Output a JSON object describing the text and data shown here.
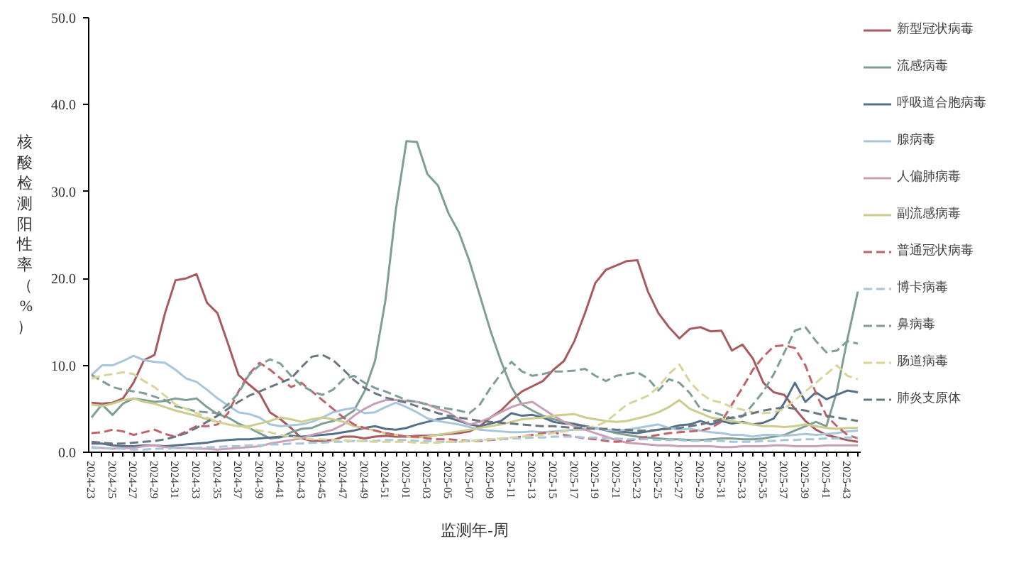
{
  "chart_data": {
    "type": "line",
    "ylabel": "核酸检测阳性率（%）",
    "xlabel": "监测年-周",
    "categories": [
      "2024-23",
      null,
      "2024-25",
      null,
      "2024-27",
      null,
      "2024-29",
      null,
      "2024-31",
      null,
      "2024-33",
      null,
      "2024-35",
      null,
      "2024-37",
      null,
      "2024-39",
      null,
      "2024-41",
      null,
      "2024-43",
      null,
      "2024-45",
      null,
      "2024-47",
      null,
      "2024-49",
      null,
      "2024-51",
      null,
      "2025-01",
      null,
      "2025-03",
      null,
      "2025-05",
      null,
      "2025-07",
      null,
      "2025-09",
      null,
      "2025-11",
      null,
      "2025-13",
      null,
      "2025-15",
      null,
      "2025-17",
      null,
      "2025-19",
      null,
      "2025-21",
      null,
      "2025-23",
      null,
      "2025-25",
      null,
      "2025-27",
      null,
      "2025-29",
      null,
      "2025-31",
      null,
      "2025-33",
      null,
      "2025-35",
      null,
      "2025-37",
      null,
      "2025-39",
      null,
      "2025-41",
      null,
      "2025-43",
      null
    ],
    "ylim": [
      0,
      50
    ],
    "yticks": [
      {
        "value": 0,
        "label": "0.0"
      },
      {
        "value": 10,
        "label": "10.0"
      },
      {
        "value": 20,
        "label": "20.0"
      },
      {
        "value": 30,
        "label": "30.0"
      },
      {
        "value": 40,
        "label": "40.0"
      },
      {
        "value": 50,
        "label": "50.0"
      }
    ],
    "grid": false,
    "legend": "right",
    "series": [
      {
        "name": "新型冠状病毒",
        "color": "#a85a5e",
        "line_style": "solid",
        "values": [
          5.7,
          5.6,
          5.7,
          6.2,
          8.0,
          10.6,
          11.2,
          16.0,
          19.8,
          20.0,
          20.5,
          17.2,
          16.0,
          12.5,
          8.9,
          7.8,
          6.8,
          4.6,
          3.8,
          2.8,
          1.6,
          1.3,
          1.3,
          1.4,
          1.8,
          1.8,
          1.6,
          1.8,
          1.9,
          1.8,
          1.8,
          1.9,
          1.9,
          2.0,
          2.1,
          2.2,
          2.4,
          3.0,
          4.0,
          4.8,
          6.0,
          7.0,
          7.6,
          8.2,
          9.5,
          10.5,
          12.8,
          16.0,
          19.5,
          21.0,
          21.5,
          22.0,
          22.1,
          18.5,
          16.0,
          14.4,
          13.1,
          14.2,
          14.4,
          13.9,
          14.0,
          11.7,
          12.4,
          10.8,
          8.0,
          6.9,
          6.6,
          5.0,
          3.6,
          2.6,
          2.0,
          1.7,
          1.4,
          1.2
        ]
      },
      {
        "name": "流感病毒",
        "color": "#7f9e94",
        "line_style": "solid",
        "values": [
          4.0,
          5.5,
          4.3,
          5.6,
          6.2,
          6.0,
          5.8,
          5.9,
          6.2,
          6.0,
          6.2,
          5.2,
          4.4,
          4.0,
          3.3,
          2.8,
          2.2,
          1.6,
          1.7,
          2.3,
          2.7,
          2.8,
          3.3,
          3.6,
          4.0,
          4.8,
          7.0,
          10.5,
          17.5,
          28.0,
          35.8,
          35.7,
          32.0,
          30.7,
          27.5,
          25.3,
          22.0,
          18.0,
          14.0,
          10.5,
          7.5,
          5.5,
          4.8,
          4.2,
          3.8,
          3.5,
          3.3,
          3.0,
          2.8,
          2.5,
          2.2,
          2.0,
          1.8,
          1.7,
          1.6,
          1.5,
          1.5,
          1.4,
          1.4,
          1.5,
          1.6,
          1.6,
          1.5,
          1.5,
          1.6,
          1.8,
          2.0,
          2.5,
          3.0,
          3.5,
          3.0,
          7.0,
          13.0,
          18.5
        ]
      },
      {
        "name": "呼吸道合胞病毒",
        "color": "#56708a",
        "line_style": "solid",
        "values": [
          1.0,
          1.0,
          0.8,
          0.7,
          0.7,
          0.8,
          0.8,
          0.7,
          0.8,
          0.9,
          1.0,
          1.1,
          1.3,
          1.4,
          1.5,
          1.5,
          1.6,
          1.7,
          1.8,
          1.9,
          1.8,
          1.9,
          2.0,
          2.1,
          2.3,
          2.5,
          2.8,
          3.0,
          2.7,
          2.6,
          2.8,
          3.2,
          3.5,
          3.8,
          4.0,
          3.6,
          3.2,
          3.0,
          3.3,
          3.6,
          4.5,
          4.2,
          4.3,
          4.0,
          3.5,
          3.3,
          3.2,
          3.0,
          2.8,
          2.6,
          2.4,
          2.3,
          2.2,
          2.4,
          2.6,
          2.8,
          3.1,
          3.2,
          3.6,
          3.2,
          3.6,
          3.3,
          3.5,
          3.2,
          3.4,
          3.9,
          5.7,
          8.0,
          5.8,
          6.9,
          6.1,
          6.6,
          7.1,
          6.9
        ]
      },
      {
        "name": "腺病毒",
        "color": "#a8c6da",
        "line_style": "solid",
        "values": [
          8.9,
          10.0,
          10.0,
          10.5,
          11.1,
          10.6,
          10.4,
          10.3,
          9.5,
          8.5,
          8.1,
          7.2,
          6.2,
          5.4,
          4.6,
          4.4,
          4.0,
          3.2,
          3.0,
          3.1,
          3.2,
          3.5,
          4.0,
          4.6,
          4.9,
          5.1,
          4.5,
          4.6,
          5.2,
          5.7,
          5.2,
          4.6,
          3.9,
          3.6,
          3.4,
          3.2,
          2.9,
          2.6,
          2.5,
          2.4,
          2.3,
          2.3,
          2.4,
          2.3,
          2.4,
          2.5,
          2.6,
          2.6,
          2.8,
          2.6,
          2.5,
          2.6,
          2.8,
          3.0,
          3.2,
          2.8,
          2.6,
          2.7,
          2.5,
          2.3,
          2.2,
          2.0,
          2.0,
          1.8,
          2.0,
          2.0,
          1.9,
          2.0,
          2.1,
          2.0,
          2.1,
          2.2,
          2.4,
          2.5
        ]
      },
      {
        "name": "人偏肺病毒",
        "color": "#c9a0b6",
        "line_style": "solid",
        "values": [
          0.6,
          0.5,
          0.4,
          0.5,
          0.5,
          0.7,
          0.8,
          0.6,
          0.5,
          0.5,
          0.4,
          0.4,
          0.3,
          0.4,
          0.5,
          0.6,
          0.7,
          1.0,
          1.2,
          1.4,
          1.6,
          2.0,
          2.3,
          2.6,
          3.2,
          4.2,
          5.0,
          5.6,
          6.0,
          6.0,
          5.9,
          5.8,
          5.5,
          5.0,
          4.6,
          3.8,
          3.2,
          3.5,
          4.0,
          4.6,
          5.2,
          5.6,
          5.8,
          5.0,
          4.2,
          3.5,
          3.0,
          2.6,
          2.2,
          1.8,
          1.4,
          1.1,
          1.0,
          0.9,
          0.8,
          0.8,
          0.7,
          0.7,
          0.7,
          0.7,
          0.6,
          0.6,
          0.7,
          0.7,
          0.7,
          0.8,
          0.8,
          0.7,
          0.7,
          0.7,
          0.8,
          0.8,
          0.8,
          0.8
        ]
      },
      {
        "name": "副流感病毒",
        "color": "#cccc8e",
        "line_style": "solid",
        "values": [
          5.5,
          5.3,
          5.6,
          6.0,
          6.2,
          5.8,
          5.6,
          5.2,
          4.8,
          4.5,
          4.2,
          3.8,
          3.5,
          3.2,
          3.0,
          3.0,
          3.3,
          3.6,
          4.0,
          3.8,
          3.5,
          3.8,
          4.0,
          3.8,
          3.5,
          3.0,
          2.8,
          2.5,
          2.2,
          2.0,
          1.8,
          1.7,
          1.8,
          2.0,
          2.2,
          2.4,
          2.6,
          2.8,
          3.0,
          3.2,
          3.5,
          3.8,
          3.9,
          4.0,
          4.2,
          4.3,
          4.4,
          4.0,
          3.8,
          3.6,
          3.5,
          3.6,
          3.9,
          4.2,
          4.6,
          5.2,
          6.0,
          5.0,
          4.5,
          4.0,
          3.8,
          3.6,
          3.4,
          3.2,
          3.0,
          3.0,
          2.9,
          3.0,
          3.2,
          3.0,
          2.8,
          2.7,
          2.8,
          2.8
        ]
      },
      {
        "name": "普通冠状病毒",
        "color": "#c0646c",
        "line_style": "dashed",
        "values": [
          2.2,
          2.3,
          2.6,
          2.4,
          2.0,
          2.3,
          2.6,
          2.1,
          1.8,
          2.4,
          3.0,
          3.0,
          3.2,
          4.5,
          7.0,
          9.0,
          10.3,
          9.5,
          8.5,
          7.5,
          8.0,
          7.0,
          6.0,
          5.0,
          4.0,
          3.2,
          2.8,
          2.5,
          2.2,
          2.0,
          1.8,
          1.8,
          1.6,
          1.5,
          1.5,
          1.4,
          1.3,
          1.3,
          1.4,
          1.5,
          1.6,
          1.8,
          2.0,
          2.2,
          2.3,
          2.0,
          1.8,
          1.6,
          1.5,
          1.3,
          1.2,
          1.3,
          1.5,
          1.8,
          2.0,
          2.2,
          2.3,
          2.4,
          2.5,
          2.8,
          3.5,
          5.5,
          7.4,
          9.5,
          11.0,
          12.2,
          12.3,
          12.0,
          10.0,
          6.8,
          4.2,
          3.0,
          2.0,
          1.6
        ]
      },
      {
        "name": "博卡病毒",
        "color": "#a8c6da",
        "line_style": "dashed",
        "values": [
          0.5,
          0.5,
          0.4,
          0.4,
          0.3,
          0.3,
          0.4,
          0.4,
          0.5,
          0.5,
          0.5,
          0.6,
          0.6,
          0.7,
          0.7,
          0.8,
          0.8,
          0.9,
          0.9,
          1.0,
          1.0,
          1.1,
          1.1,
          1.2,
          1.2,
          1.3,
          1.3,
          1.3,
          1.4,
          1.4,
          1.4,
          1.3,
          1.3,
          1.2,
          1.2,
          1.2,
          1.3,
          1.4,
          1.5,
          1.5,
          1.6,
          1.6,
          1.7,
          1.7,
          1.8,
          1.8,
          1.8,
          1.7,
          1.7,
          1.6,
          1.6,
          1.5,
          1.5,
          1.5,
          1.4,
          1.4,
          1.4,
          1.3,
          1.3,
          1.3,
          1.3,
          1.2,
          1.2,
          1.2,
          1.3,
          1.3,
          1.4,
          1.4,
          1.5,
          1.5,
          1.6,
          1.6,
          1.7,
          1.7
        ]
      },
      {
        "name": "鼻病毒",
        "color": "#7f9e94",
        "line_style": "dashed",
        "values": [
          8.9,
          8.2,
          7.5,
          7.2,
          7.0,
          6.8,
          6.4,
          6.0,
          5.3,
          5.0,
          4.7,
          4.6,
          4.5,
          5.5,
          6.8,
          8.9,
          10.0,
          10.7,
          10.2,
          8.8,
          7.7,
          7.0,
          6.6,
          7.2,
          8.4,
          8.8,
          8.0,
          7.4,
          7.0,
          6.5,
          6.0,
          5.8,
          5.5,
          5.2,
          5.0,
          4.8,
          4.5,
          5.5,
          7.4,
          9.0,
          10.4,
          9.3,
          8.8,
          9.0,
          9.3,
          9.3,
          9.4,
          9.6,
          8.8,
          8.2,
          8.8,
          9.0,
          9.2,
          8.5,
          7.1,
          8.4,
          8.0,
          6.8,
          5.0,
          4.7,
          4.3,
          3.9,
          4.1,
          5.5,
          7.0,
          9.0,
          11.5,
          14.0,
          14.4,
          12.8,
          11.5,
          11.7,
          12.8,
          12.5
        ]
      },
      {
        "name": "肠道病毒",
        "color": "#d8d49a",
        "line_style": "dashed",
        "values": [
          8.5,
          8.8,
          9.0,
          9.2,
          9.0,
          8.2,
          7.5,
          6.5,
          5.5,
          5.0,
          4.5,
          4.0,
          3.5,
          3.2,
          3.0,
          2.8,
          2.5,
          2.3,
          2.0,
          1.8,
          1.6,
          1.5,
          1.5,
          1.4,
          1.4,
          1.3,
          1.3,
          1.2,
          1.2,
          1.2,
          1.2,
          1.1,
          1.1,
          1.1,
          1.2,
          1.2,
          1.3,
          1.4,
          1.5,
          1.6,
          1.7,
          1.8,
          1.9,
          2.0,
          2.2,
          2.4,
          2.6,
          2.8,
          3.0,
          3.5,
          4.5,
          5.5,
          6.0,
          6.5,
          7.5,
          9.0,
          10.1,
          8.1,
          6.8,
          6.0,
          5.7,
          5.2,
          4.9,
          4.6,
          4.5,
          4.6,
          5.0,
          6.0,
          7.0,
          8.0,
          9.0,
          10.0,
          8.8,
          8.4
        ]
      },
      {
        "name": "肺炎支原体",
        "color": "#6a7680",
        "line_style": "dashed",
        "values": [
          1.2,
          1.1,
          1.0,
          1.0,
          1.1,
          1.2,
          1.3,
          1.5,
          1.8,
          2.2,
          2.8,
          3.5,
          4.2,
          5.0,
          5.8,
          6.5,
          7.0,
          7.5,
          8.0,
          8.5,
          9.8,
          11.0,
          11.2,
          10.6,
          9.5,
          8.3,
          7.4,
          6.8,
          6.3,
          6.0,
          5.7,
          5.3,
          4.9,
          4.5,
          4.2,
          4.0,
          3.8,
          3.6,
          3.5,
          3.4,
          3.3,
          3.2,
          3.1,
          3.0,
          3.0,
          2.9,
          2.8,
          2.8,
          2.7,
          2.7,
          2.6,
          2.6,
          2.5,
          2.5,
          2.6,
          2.7,
          2.8,
          3.0,
          3.2,
          3.5,
          3.8,
          4.0,
          4.2,
          4.5,
          4.8,
          5.0,
          5.2,
          5.0,
          4.8,
          4.5,
          4.2,
          4.0,
          3.8,
          3.6
        ]
      }
    ]
  }
}
